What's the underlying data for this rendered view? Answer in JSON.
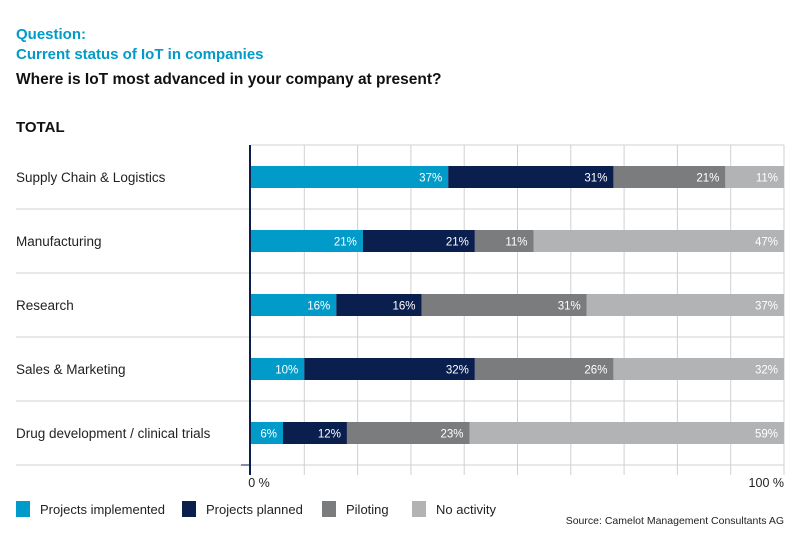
{
  "header": {
    "question_label": "Question:",
    "subtitle": "Current status of IoT in companies",
    "question": "Where is IoT most advanced in your company at present?",
    "group": "TOTAL"
  },
  "chart_data": {
    "type": "bar",
    "stacked": true,
    "orientation": "horizontal",
    "title": "Current status of IoT in companies",
    "categories": [
      "Supply Chain & Logistics",
      "Manufacturing",
      "Research",
      "Sales & Marketing",
      "Drug development / clinical trials"
    ],
    "series": [
      {
        "name": "Projects implemented",
        "color": "#009bc9",
        "values": [
          37,
          21,
          16,
          10,
          6
        ]
      },
      {
        "name": "Projects planned",
        "color": "#0a1f4e",
        "values": [
          31,
          21,
          16,
          32,
          12
        ]
      },
      {
        "name": "Piloting",
        "color": "#7b7c7e",
        "values": [
          21,
          11,
          31,
          26,
          23
        ]
      },
      {
        "name": "No activity",
        "color": "#b2b3b5",
        "values": [
          11,
          47,
          37,
          32,
          59
        ]
      }
    ],
    "xlim": [
      0,
      100
    ],
    "tick_labels": [
      "0 %",
      "100 %"
    ],
    "legend_position": "bottom-left",
    "grid": true
  },
  "source": "Source: Camelot Management Consultants AG"
}
